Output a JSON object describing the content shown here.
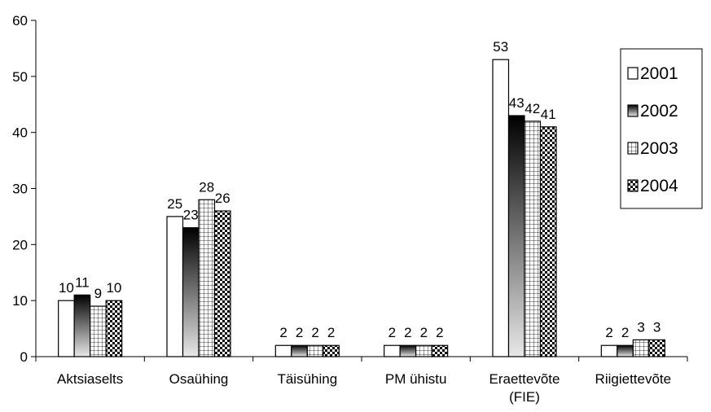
{
  "chart_data": {
    "type": "bar",
    "categories": [
      "Aktsiaselts",
      "Osaühing",
      "Täisühing",
      "PM ühistu",
      "Eraettevõte\n(FIE)",
      "Riigiettevõte"
    ],
    "series": [
      {
        "name": "2001",
        "values": [
          10,
          25,
          2,
          2,
          53,
          2
        ],
        "pattern": "white"
      },
      {
        "name": "2002",
        "values": [
          11,
          23,
          2,
          2,
          43,
          2
        ],
        "pattern": "gradient-dark"
      },
      {
        "name": "2003",
        "values": [
          9,
          28,
          2,
          2,
          42,
          3
        ],
        "pattern": "grid"
      },
      {
        "name": "2004",
        "values": [
          10,
          26,
          2,
          2,
          41,
          3
        ],
        "pattern": "checker"
      }
    ],
    "ylim": [
      0,
      60
    ],
    "yticks": [
      0,
      10,
      20,
      30,
      40,
      50,
      60
    ],
    "legend_position": "right",
    "grid": false
  }
}
